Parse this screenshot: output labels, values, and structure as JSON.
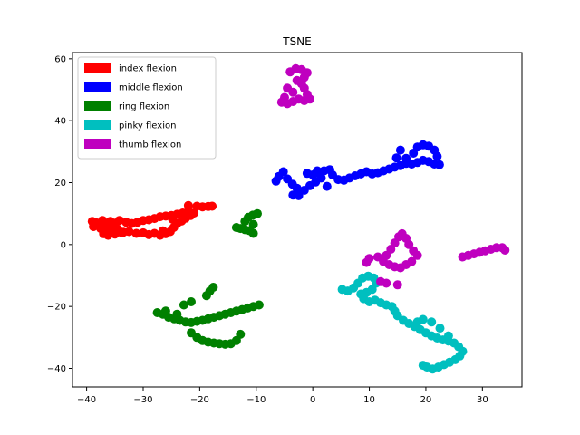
{
  "chart_data": {
    "type": "scatter",
    "title": "TSNE",
    "xlabel": "",
    "ylabel": "",
    "xlim": [
      -42.5,
      37.0
    ],
    "ylim": [
      -46.0,
      62.0
    ],
    "xticks": [
      -40,
      -30,
      -20,
      -10,
      0,
      10,
      20,
      30
    ],
    "yticks": [
      -40,
      -20,
      0,
      20,
      40,
      60
    ],
    "grid": false,
    "legend_position": "top-left",
    "series": [
      {
        "name": "index flexion",
        "color": "#ff0000",
        "points": [
          [
            -38.5,
            7.2
          ],
          [
            -37.8,
            6.5
          ],
          [
            -37.2,
            7.8
          ],
          [
            -36.5,
            6.8
          ],
          [
            -35.8,
            7.5
          ],
          [
            -35.0,
            6.9
          ],
          [
            -37.5,
            5.2
          ],
          [
            -36.8,
            4.5
          ],
          [
            -36.0,
            5.5
          ],
          [
            -35.2,
            4.2
          ],
          [
            -34.5,
            5.0
          ],
          [
            -33.5,
            4.0
          ],
          [
            -37.0,
            3.5
          ],
          [
            -36.2,
            3.0
          ],
          [
            -35.0,
            3.4
          ],
          [
            -33.8,
            3.8
          ],
          [
            -32.5,
            4.2
          ],
          [
            -31.2,
            3.6
          ],
          [
            -30.0,
            3.8
          ],
          [
            -29.0,
            3.2
          ],
          [
            -28.0,
            3.6
          ],
          [
            -27.0,
            3.0
          ],
          [
            -26.0,
            3.5
          ],
          [
            -25.2,
            4.2
          ],
          [
            -24.6,
            5.5
          ],
          [
            -24.0,
            6.8
          ],
          [
            -23.2,
            7.6
          ],
          [
            -22.5,
            8.5
          ],
          [
            -21.6,
            9.4
          ],
          [
            -21.0,
            10.2
          ],
          [
            -22.0,
            10.8
          ],
          [
            -23.0,
            10.2
          ],
          [
            -24.0,
            9.8
          ],
          [
            -25.0,
            9.4
          ],
          [
            -26.0,
            9.2
          ],
          [
            -27.0,
            9.0
          ],
          [
            -28.0,
            8.4
          ],
          [
            -29.0,
            8.0
          ],
          [
            -30.0,
            7.8
          ],
          [
            -31.0,
            7.2
          ],
          [
            -32.0,
            6.8
          ],
          [
            -33.0,
            7.2
          ],
          [
            -22.0,
            12.6
          ],
          [
            -20.5,
            12.4
          ],
          [
            -19.5,
            12.2
          ],
          [
            -18.5,
            12.3
          ],
          [
            -17.8,
            12.4
          ],
          [
            -39.0,
            7.5
          ],
          [
            -38.8,
            5.8
          ],
          [
            -34.2,
            7.8
          ],
          [
            -24.8,
            8.2
          ],
          [
            -26.5,
            4.4
          ]
        ]
      },
      {
        "name": "middle flexion",
        "color": "#0000ff",
        "points": [
          [
            -6.5,
            20.5
          ],
          [
            -6.0,
            22.0
          ],
          [
            -5.2,
            23.5
          ],
          [
            -4.5,
            21.2
          ],
          [
            -3.6,
            19.5
          ],
          [
            -2.8,
            18.2
          ],
          [
            -3.5,
            16.0
          ],
          [
            -2.5,
            15.8
          ],
          [
            -1.5,
            17.5
          ],
          [
            -0.5,
            19.0
          ],
          [
            0.5,
            20.2
          ],
          [
            1.5,
            21.5
          ],
          [
            0.0,
            22.5
          ],
          [
            1.0,
            23.0
          ],
          [
            2.0,
            23.8
          ],
          [
            3.0,
            24.2
          ],
          [
            3.5,
            22.5
          ],
          [
            4.5,
            21.0
          ],
          [
            5.5,
            20.8
          ],
          [
            6.5,
            21.5
          ],
          [
            7.5,
            22.2
          ],
          [
            8.5,
            22.8
          ],
          [
            9.5,
            23.5
          ],
          [
            10.5,
            22.8
          ],
          [
            11.5,
            23.2
          ],
          [
            12.5,
            23.8
          ],
          [
            13.5,
            24.4
          ],
          [
            14.5,
            25.0
          ],
          [
            15.5,
            25.5
          ],
          [
            16.5,
            26.2
          ],
          [
            17.5,
            26.0
          ],
          [
            18.5,
            26.5
          ],
          [
            19.5,
            27.2
          ],
          [
            20.5,
            26.8
          ],
          [
            21.5,
            26.0
          ],
          [
            22.4,
            25.8
          ],
          [
            17.8,
            29.5
          ],
          [
            18.5,
            31.5
          ],
          [
            19.5,
            32.2
          ],
          [
            20.5,
            31.8
          ],
          [
            21.5,
            30.5
          ],
          [
            22.0,
            28.5
          ],
          [
            15.5,
            30.5
          ],
          [
            16.5,
            27.8
          ],
          [
            14.8,
            28.0
          ],
          [
            -1.0,
            23.0
          ],
          [
            0.8,
            23.8
          ],
          [
            2.5,
            18.8
          ]
        ]
      },
      {
        "name": "ring flexion",
        "color": "#008000",
        "points": [
          [
            -13.5,
            5.5
          ],
          [
            -12.8,
            5.2
          ],
          [
            -12.0,
            4.8
          ],
          [
            -11.2,
            4.5
          ],
          [
            -10.5,
            3.6
          ],
          [
            -12.0,
            7.5
          ],
          [
            -11.4,
            8.8
          ],
          [
            -10.6,
            9.5
          ],
          [
            -9.8,
            10.0
          ],
          [
            -10.5,
            6.5
          ],
          [
            -27.5,
            -22.0
          ],
          [
            -26.5,
            -22.5
          ],
          [
            -25.5,
            -23.5
          ],
          [
            -24.5,
            -24.0
          ],
          [
            -23.5,
            -24.5
          ],
          [
            -22.5,
            -25.0
          ],
          [
            -21.5,
            -25.2
          ],
          [
            -20.5,
            -24.8
          ],
          [
            -19.5,
            -24.5
          ],
          [
            -18.5,
            -24.0
          ],
          [
            -17.5,
            -23.5
          ],
          [
            -16.5,
            -23.0
          ],
          [
            -15.5,
            -22.5
          ],
          [
            -14.5,
            -22.0
          ],
          [
            -13.5,
            -21.5
          ],
          [
            -12.5,
            -21.0
          ],
          [
            -11.5,
            -20.5
          ],
          [
            -10.5,
            -20.0
          ],
          [
            -9.5,
            -19.5
          ],
          [
            -22.8,
            -19.5
          ],
          [
            -21.5,
            -18.5
          ],
          [
            -18.8,
            -16.5
          ],
          [
            -18.2,
            -15.0
          ],
          [
            -17.6,
            -13.8
          ],
          [
            -21.5,
            -28.5
          ],
          [
            -20.5,
            -30.0
          ],
          [
            -19.5,
            -31.0
          ],
          [
            -18.5,
            -31.5
          ],
          [
            -17.5,
            -31.8
          ],
          [
            -16.5,
            -32.0
          ],
          [
            -15.5,
            -32.2
          ],
          [
            -14.5,
            -32.0
          ],
          [
            -13.5,
            -31.0
          ],
          [
            -12.8,
            -29.0
          ],
          [
            -26.0,
            -21.5
          ],
          [
            -24.0,
            -22.5
          ]
        ]
      },
      {
        "name": "pinky flexion",
        "color": "#00bfbf",
        "points": [
          [
            5.2,
            -14.5
          ],
          [
            6.2,
            -15.0
          ],
          [
            7.2,
            -14.0
          ],
          [
            8.0,
            -12.5
          ],
          [
            8.8,
            -10.8
          ],
          [
            9.8,
            -10.2
          ],
          [
            10.8,
            -10.8
          ],
          [
            11.2,
            -12.5
          ],
          [
            10.5,
            -14.5
          ],
          [
            9.5,
            -15.5
          ],
          [
            8.5,
            -16.0
          ],
          [
            9.0,
            -17.5
          ],
          [
            10.0,
            -18.5
          ],
          [
            11.0,
            -18.0
          ],
          [
            12.0,
            -18.8
          ],
          [
            13.0,
            -19.5
          ],
          [
            14.0,
            -20.0
          ],
          [
            14.5,
            -21.5
          ],
          [
            15.0,
            -23.0
          ],
          [
            16.0,
            -24.5
          ],
          [
            17.0,
            -25.5
          ],
          [
            18.0,
            -26.5
          ],
          [
            19.0,
            -27.5
          ],
          [
            20.0,
            -28.5
          ],
          [
            21.0,
            -29.5
          ],
          [
            22.0,
            -30.2
          ],
          [
            23.0,
            -30.8
          ],
          [
            24.0,
            -31.2
          ],
          [
            25.0,
            -31.8
          ],
          [
            25.8,
            -33.0
          ],
          [
            26.5,
            -34.5
          ],
          [
            26.0,
            -36.0
          ],
          [
            25.2,
            -37.2
          ],
          [
            24.2,
            -38.0
          ],
          [
            23.2,
            -38.8
          ],
          [
            22.2,
            -39.6
          ],
          [
            21.2,
            -40.2
          ],
          [
            20.2,
            -39.6
          ],
          [
            19.5,
            -39.0
          ],
          [
            18.5,
            -25.0
          ],
          [
            19.5,
            -24.2
          ],
          [
            21.0,
            -25.0
          ],
          [
            22.5,
            -27.0
          ],
          [
            24.0,
            -29.5
          ]
        ]
      },
      {
        "name": "thumb flexion",
        "color": "#bf00bf",
        "points": [
          [
            -5.5,
            46.0
          ],
          [
            -4.5,
            45.5
          ],
          [
            -3.5,
            46.2
          ],
          [
            -2.5,
            47.0
          ],
          [
            -1.5,
            46.5
          ],
          [
            -1.0,
            48.5
          ],
          [
            -1.5,
            50.5
          ],
          [
            -2.0,
            52.0
          ],
          [
            -1.5,
            54.0
          ],
          [
            -1.0,
            55.5
          ],
          [
            -2.0,
            56.5
          ],
          [
            -3.0,
            56.8
          ],
          [
            -4.0,
            55.8
          ],
          [
            -4.5,
            50.5
          ],
          [
            -3.5,
            49.2
          ],
          [
            -5.0,
            47.5
          ],
          [
            -0.5,
            47.0
          ],
          [
            -2.8,
            53.0
          ],
          [
            13.0,
            -3.5
          ],
          [
            13.8,
            -1.5
          ],
          [
            14.5,
            0.5
          ],
          [
            15.2,
            2.5
          ],
          [
            15.8,
            3.5
          ],
          [
            16.5,
            2.0
          ],
          [
            17.0,
            0.0
          ],
          [
            17.8,
            -2.0
          ],
          [
            18.5,
            -3.5
          ],
          [
            17.5,
            -5.5
          ],
          [
            16.5,
            -6.5
          ],
          [
            15.5,
            -7.5
          ],
          [
            14.5,
            -7.2
          ],
          [
            13.5,
            -6.5
          ],
          [
            12.5,
            -5.5
          ],
          [
            11.5,
            -4.0
          ],
          [
            10.0,
            -4.5
          ],
          [
            9.5,
            -5.8
          ],
          [
            12.0,
            -12.0
          ],
          [
            13.0,
            -12.5
          ],
          [
            15.0,
            -13.0
          ],
          [
            26.5,
            -4.0
          ],
          [
            27.5,
            -3.5
          ],
          [
            28.5,
            -3.0
          ],
          [
            29.5,
            -2.5
          ],
          [
            30.5,
            -2.0
          ],
          [
            31.5,
            -1.5
          ],
          [
            32.5,
            -1.0
          ],
          [
            33.5,
            -1.0
          ],
          [
            34.0,
            -1.8
          ]
        ]
      }
    ]
  }
}
